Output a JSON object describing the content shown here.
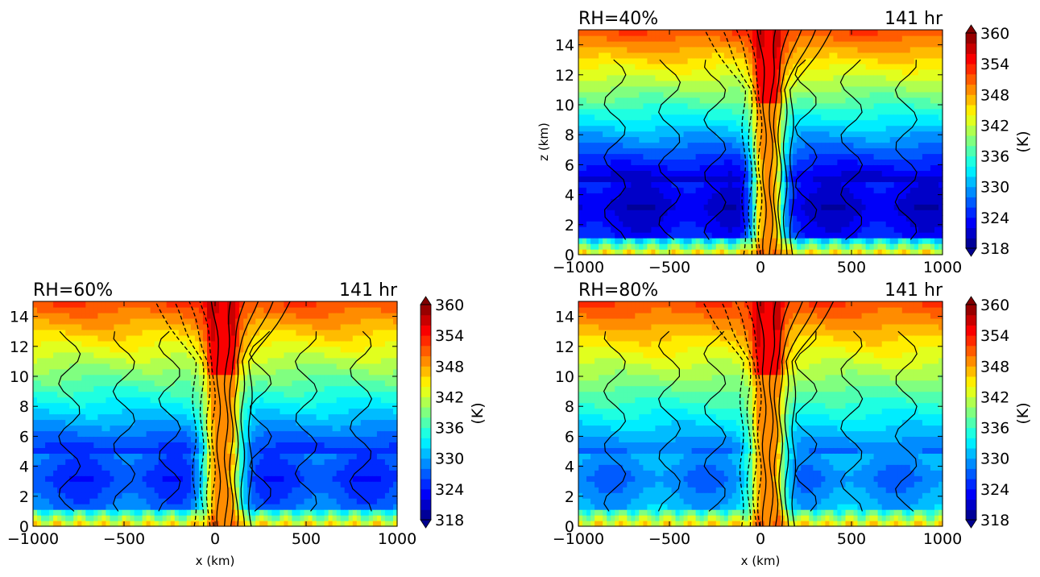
{
  "chart_data": [
    {
      "type": "heatmap",
      "title_left": "RH=40%",
      "title_right": "141 hr",
      "xlabel": "",
      "ylabel": "z (km)",
      "xlim": [
        -1000,
        1000
      ],
      "ylim": [
        0,
        15
      ],
      "xticks": [
        "−1000",
        "−500",
        "0",
        "500",
        "1000"
      ],
      "yticks": [
        "0",
        "2",
        "4",
        "6",
        "8",
        "10",
        "12",
        "14"
      ],
      "colorbar": {
        "label": "(K)",
        "ticks": [
          "318",
          "324",
          "330",
          "336",
          "342",
          "348",
          "354",
          "360"
        ],
        "range": [
          318,
          360
        ]
      },
      "surface_theta": 346,
      "midlevel_min_theta": 321,
      "upper_theta": 352,
      "core_half_width_km": 60
    },
    {
      "type": "heatmap",
      "title_left": "RH=60%",
      "title_right": "141 hr",
      "xlabel": "x (km)",
      "ylabel": "",
      "xlim": [
        -1000,
        1000
      ],
      "ylim": [
        0,
        15
      ],
      "xticks": [
        "−1000",
        "−500",
        "0",
        "500",
        "1000"
      ],
      "yticks": [
        "0",
        "2",
        "4",
        "6",
        "8",
        "10",
        "12",
        "14"
      ],
      "colorbar": {
        "label": "(K)",
        "ticks": [
          "318",
          "324",
          "330",
          "336",
          "342",
          "348",
          "354",
          "360"
        ],
        "range": [
          318,
          360
        ]
      },
      "surface_theta": 346,
      "midlevel_min_theta": 325,
      "upper_theta": 352,
      "core_half_width_km": 70
    },
    {
      "type": "heatmap",
      "title_left": "RH=80%",
      "title_right": "141 hr",
      "xlabel": "x (km)",
      "ylabel": "",
      "xlim": [
        -1000,
        1000
      ],
      "ylim": [
        0,
        15
      ],
      "xticks": [
        "−1000",
        "−500",
        "0",
        "500",
        "1000"
      ],
      "yticks": [
        "0",
        "2",
        "4",
        "6",
        "8",
        "10",
        "12",
        "14"
      ],
      "colorbar": {
        "label": "(K)",
        "ticks": [
          "318",
          "324",
          "330",
          "336",
          "342",
          "348",
          "354",
          "360"
        ],
        "range": [
          318,
          360
        ]
      },
      "surface_theta": 346,
      "midlevel_min_theta": 328,
      "upper_theta": 352,
      "core_half_width_km": 65
    }
  ]
}
